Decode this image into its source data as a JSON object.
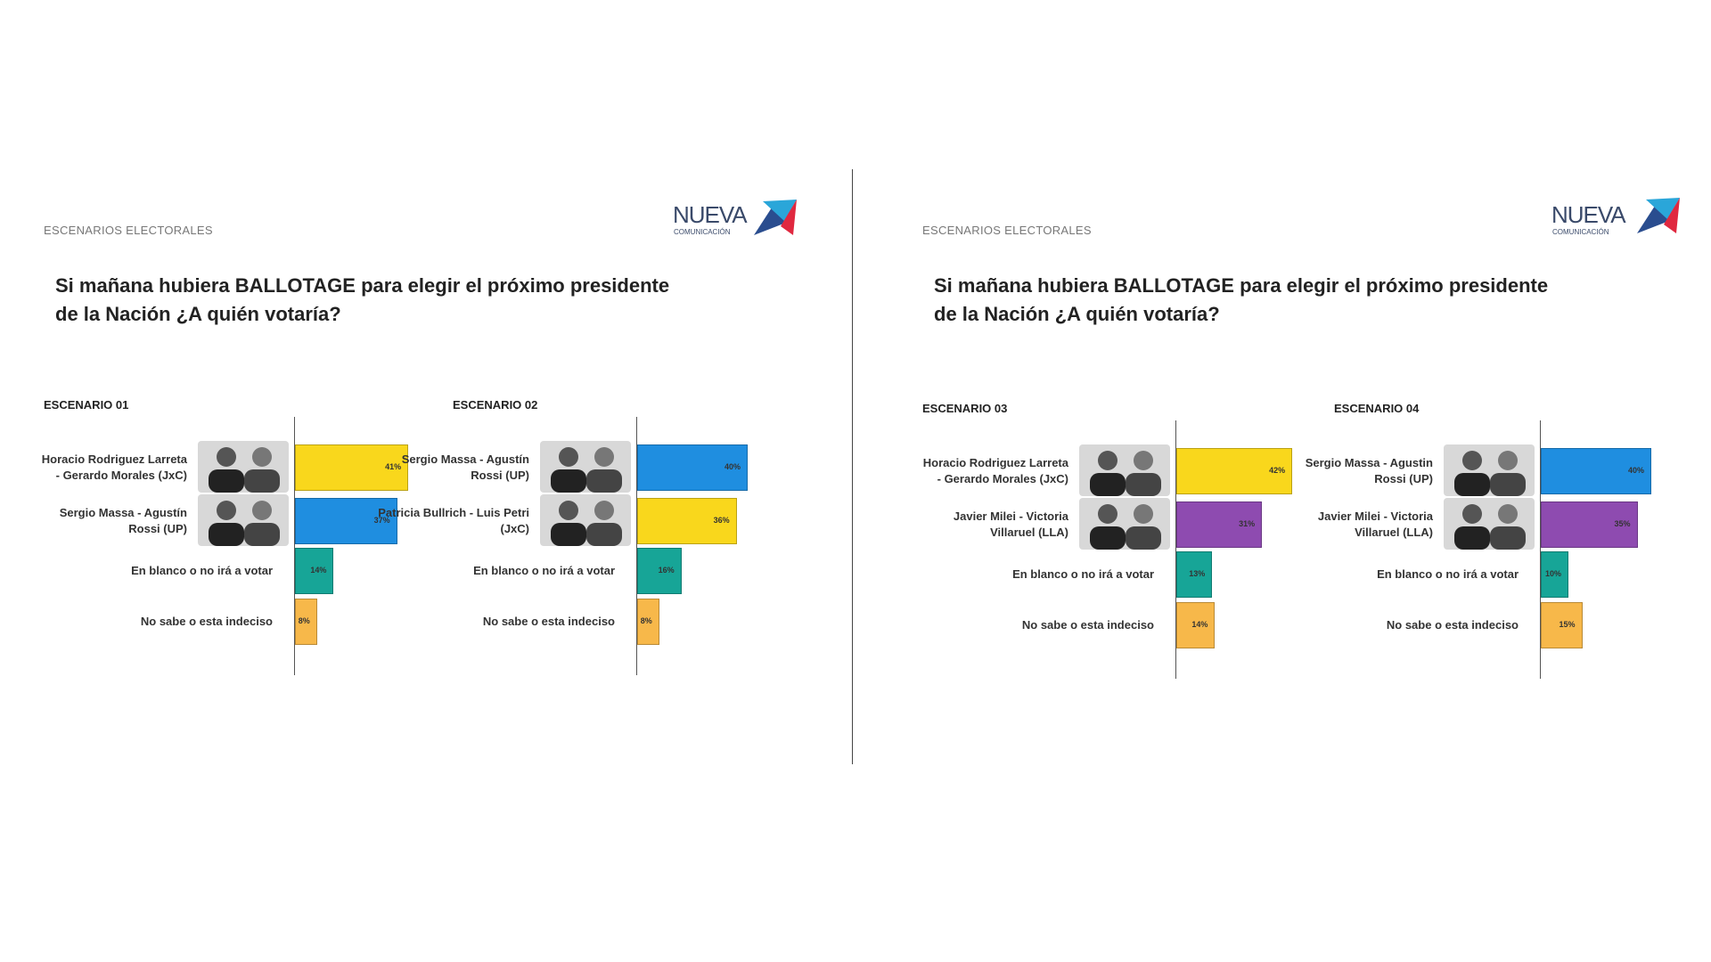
{
  "slides": [
    {
      "section": "ESCENARIOS ELECTORALES",
      "question": "Si mañana hubiera BALLOTAGE para elegir el próximo presidente\nde la Nación ¿A quién votaría?",
      "logo": "NUEVA",
      "logo_sub": "COMUNICACIÓN"
    },
    {
      "section": "ESCENARIOS ELECTORALES",
      "question": "Si mañana hubiera BALLOTAGE para elegir el próximo presidente\nde la Nación ¿A quién votaría?",
      "logo": "NUEVA",
      "logo_sub": "COMUNICACIÓN"
    }
  ],
  "chart_data": [
    {
      "type": "bar",
      "title": "ESCENARIO 01",
      "categories": [
        "Horacio Rodriguez Larreta - Gerardo Morales (JxC)",
        "Sergio Massa - Agustín Rossi (UP)",
        "En blanco o no irá a votar",
        "No sabe o esta indeciso"
      ],
      "values": [
        41,
        37,
        14,
        8
      ],
      "value_labels": [
        "41%",
        "37%",
        "14%",
        "8%"
      ],
      "colors": [
        "#f9d71c",
        "#1f8ee0",
        "#17a597",
        "#f7b84a"
      ]
    },
    {
      "type": "bar",
      "title": "ESCENARIO 02",
      "categories": [
        "Sergio Massa - Agustín Rossi (UP)",
        "Patricia Bullrich - Luis Petri (JxC)",
        "En blanco o no irá a votar",
        "No sabe o esta indeciso"
      ],
      "values": [
        40,
        36,
        16,
        8
      ],
      "value_labels": [
        "40%",
        "36%",
        "16%",
        "8%"
      ],
      "colors": [
        "#1f8ee0",
        "#f9d71c",
        "#17a597",
        "#f7b84a"
      ]
    },
    {
      "type": "bar",
      "title": "ESCENARIO 03",
      "categories": [
        "Horacio Rodriguez Larreta - Gerardo Morales (JxC)",
        "Javier Milei - Victoria Villaruel (LLA)",
        "En blanco o no irá a votar",
        "No sabe o esta indeciso"
      ],
      "values": [
        42,
        31,
        13,
        14
      ],
      "value_labels": [
        "42%",
        "31%",
        "13%",
        "14%"
      ],
      "colors": [
        "#f9d71c",
        "#8e4bb0",
        "#17a597",
        "#f7b84a"
      ]
    },
    {
      "type": "bar",
      "title": "ESCENARIO 04",
      "categories": [
        "Sergio Massa - Agustin Rossi (UP)",
        "Javier Milei - Victoria Villaruel (LLA)",
        "En blanco o no irá a votar",
        "No sabe o esta indeciso"
      ],
      "values": [
        40,
        35,
        10,
        15
      ],
      "value_labels": [
        "40%",
        "35%",
        "10%",
        "15%"
      ],
      "colors": [
        "#1f8ee0",
        "#8e4bb0",
        "#17a597",
        "#f7b84a"
      ]
    }
  ]
}
